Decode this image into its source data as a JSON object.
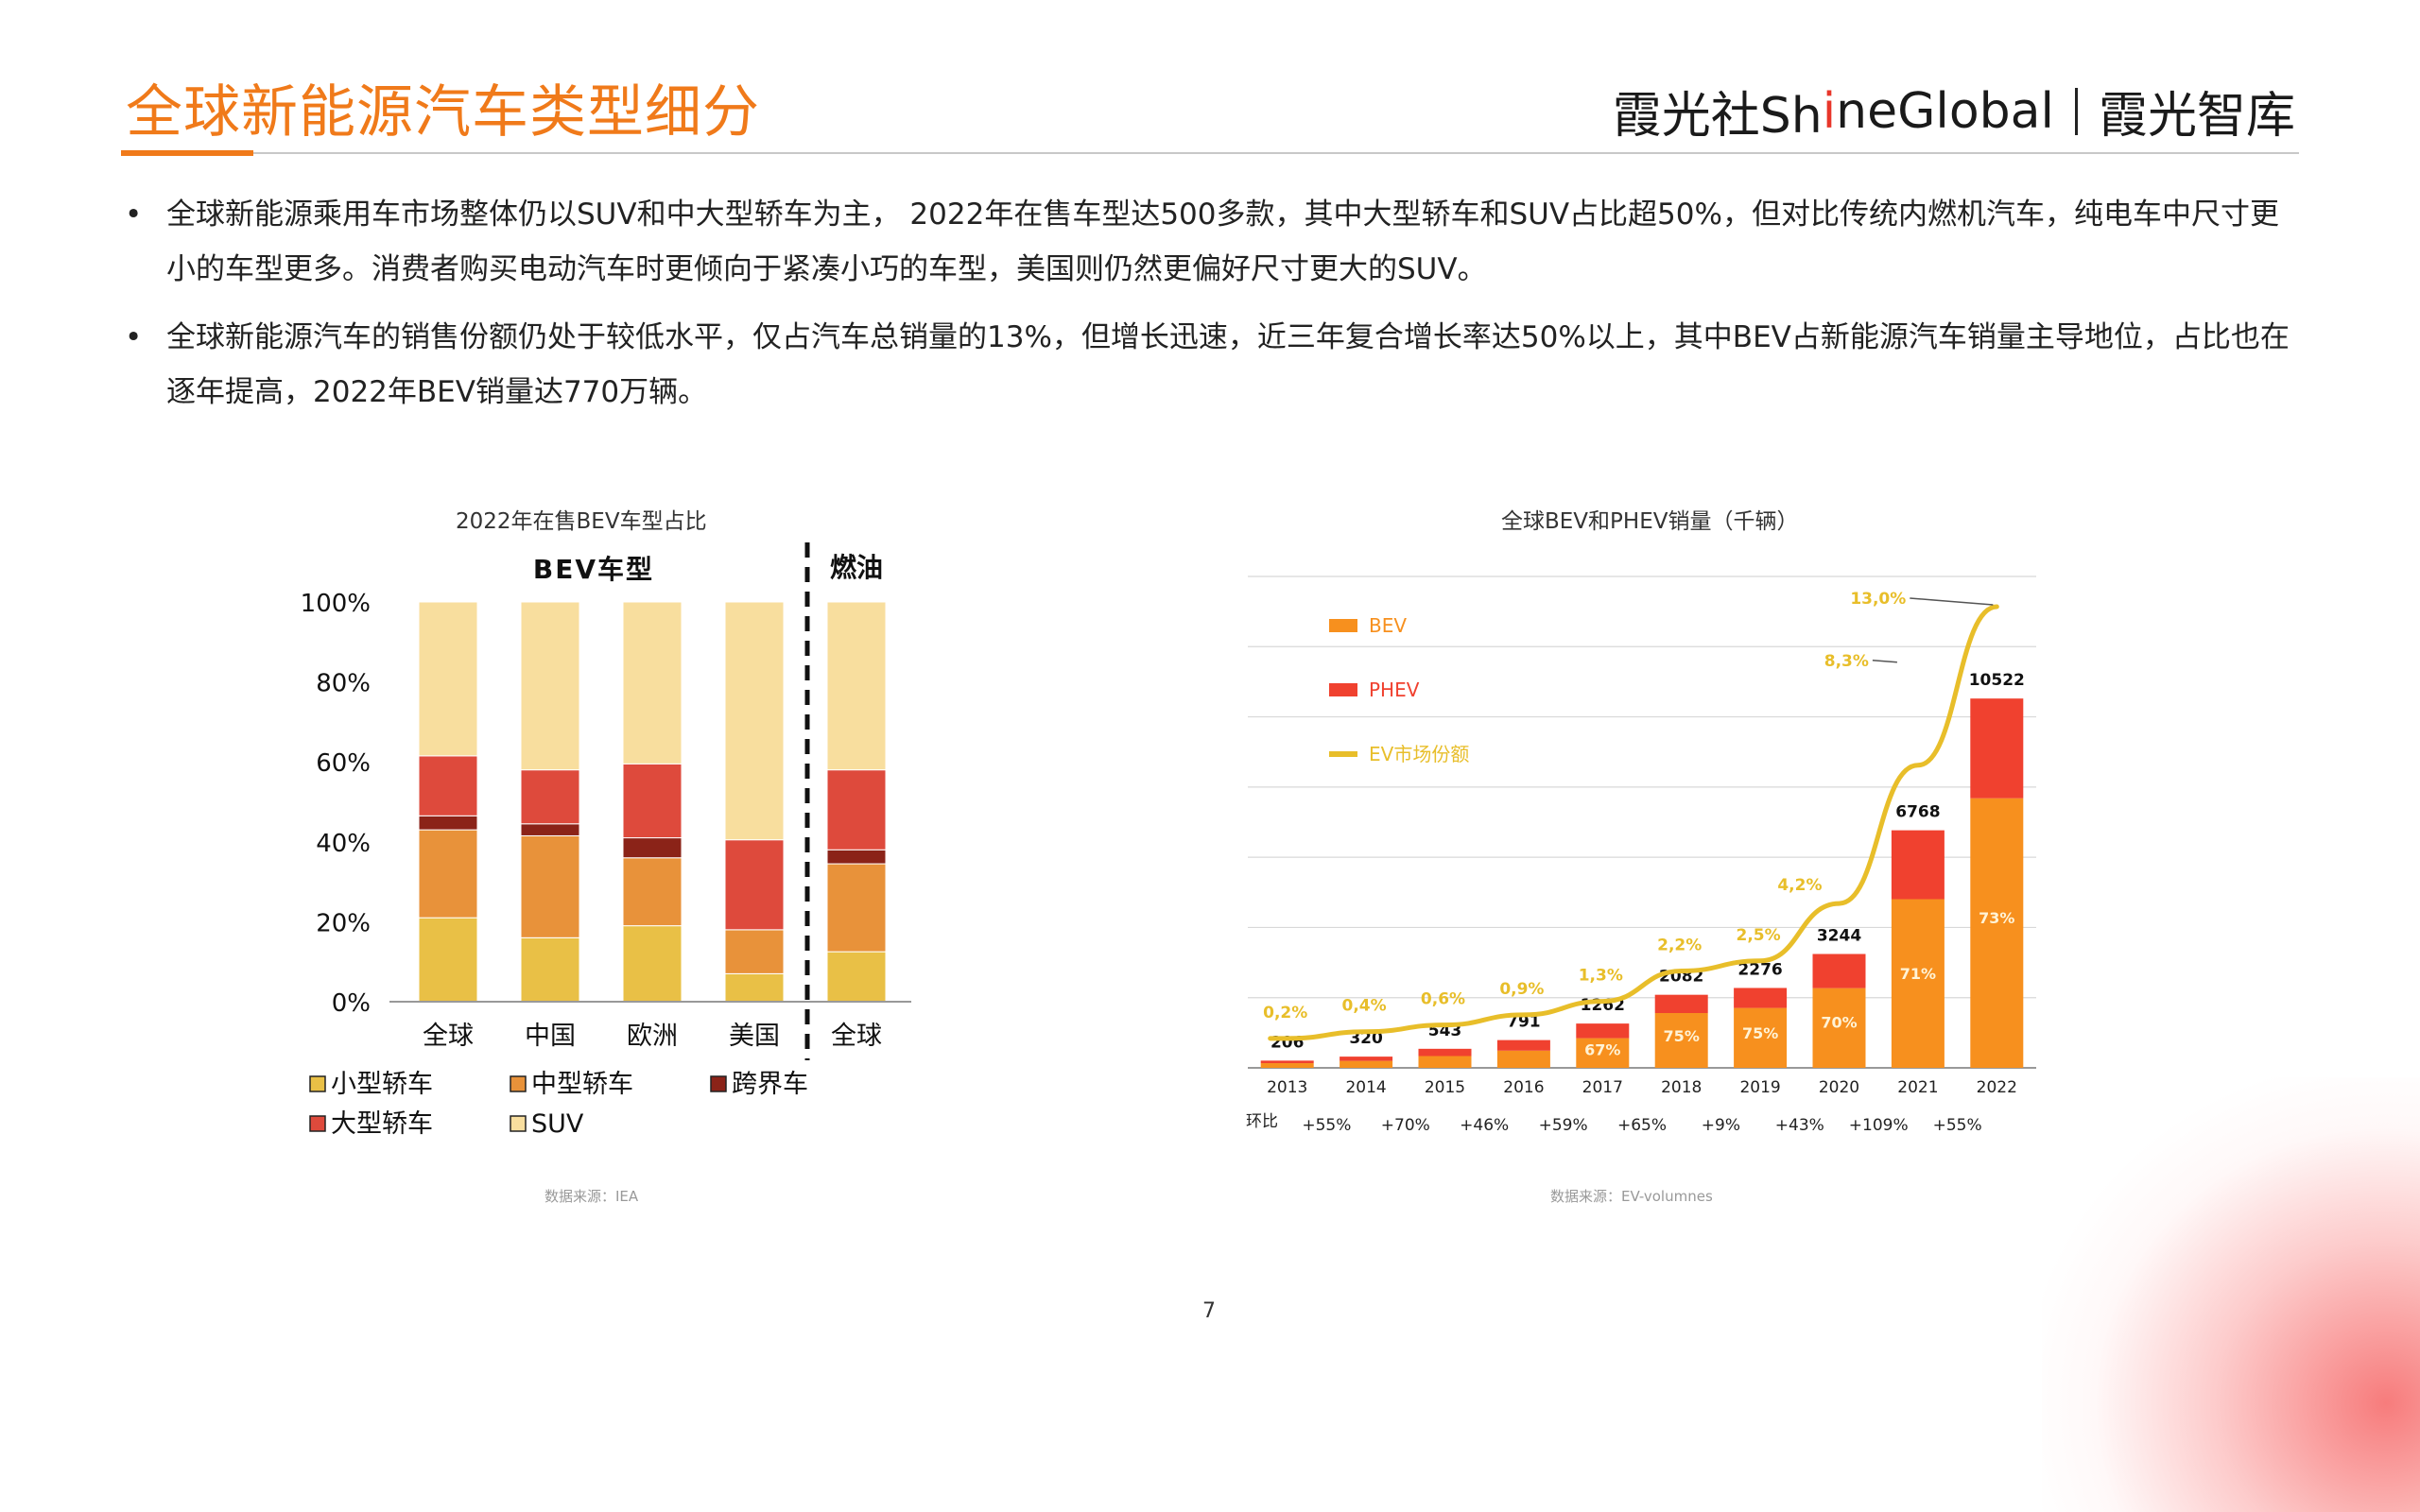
{
  "header": {
    "title": "全球新能源汽车类型细分",
    "brand_a1": "霞光社Sh",
    "brand_a2": "i",
    "brand_a3": "neGlobal",
    "brand_b": "霞光智库"
  },
  "bullets": [
    "全球新能源乘用车市场整体仍以SUV和中大型轿车为主， 2022年在售车型达500多款，其中大型轿车和SUV占比超50%，但对比传统内燃机汽车，纯电车中尺寸更小的车型更多。消费者购买电动汽车时更倾向于紧凑小巧的车型，美国则仍然更偏好尺寸更大的SUV。",
    "全球新能源汽车的销售份额仍处于较低水平，仅占汽车总销量的13%，但增长迅速，近三年复合增长率达50%以上，其中BEV占新能源汽车销量主导地位，占比也在逐年提高，2022年BEV销量达770万辆。"
  ],
  "page_number": "7",
  "chart_data": [
    {
      "type": "bar",
      "stacked": true,
      "title": "2022年在售BEV车型占比",
      "group_labels": [
        "BEV车型",
        "燃油"
      ],
      "categories": [
        "全球",
        "中国",
        "欧洲",
        "美国",
        "全球"
      ],
      "category_group": [
        0,
        0,
        0,
        0,
        1
      ],
      "yticks": [
        "0%",
        "20%",
        "40%",
        "60%",
        "80%",
        "100%"
      ],
      "ylim": [
        0,
        100
      ],
      "series": [
        {
          "name": "小型轿车",
          "color": "#E9C046",
          "values": [
            21,
            16,
            19,
            7,
            12.5
          ]
        },
        {
          "name": "中型轿车",
          "color": "#E8923A",
          "values": [
            22,
            25.5,
            17,
            11,
            22
          ]
        },
        {
          "name": "跨界车",
          "color": "#8B2318",
          "values": [
            3.5,
            3,
            5,
            0,
            3.5
          ]
        },
        {
          "name": "大型轿车",
          "color": "#DE4A3C",
          "values": [
            15,
            13.5,
            18.5,
            22.5,
            20
          ]
        },
        {
          "name": "SUV",
          "color": "#F8DE9E",
          "values": [
            38.5,
            42,
            40.5,
            59.5,
            42
          ]
        }
      ],
      "legend_position": "bottom",
      "source": "数据来源：IEA"
    },
    {
      "type": "bar",
      "stacked": true,
      "title": "全球BEV和PHEV销量（千辆）",
      "categories": [
        "2013",
        "2014",
        "2015",
        "2016",
        "2017",
        "2018",
        "2019",
        "2020",
        "2021",
        "2022"
      ],
      "totals": [
        206,
        320,
        543,
        791,
        1262,
        2082,
        2276,
        3244,
        6768,
        10522
      ],
      "total_labels": [
        "206",
        "320",
        "543",
        "791",
        "1262",
        "2082",
        "2276",
        "3244",
        "6768",
        "10522"
      ],
      "bev_share": [
        0.65,
        0.62,
        0.62,
        0.62,
        0.67,
        0.75,
        0.75,
        0.7,
        0.71,
        0.73
      ],
      "bev_share_labels": [
        "",
        "",
        "",
        "",
        "67%",
        "75%",
        "75%",
        "70%",
        "71%",
        "73%"
      ],
      "series": [
        {
          "name": "BEV",
          "color": "#F7901E"
        },
        {
          "name": "PHEV",
          "color": "#F0412F"
        },
        {
          "name": "EV市场份额",
          "color": "#E8BE2A",
          "type": "line",
          "values": [
            0.2,
            0.4,
            0.6,
            0.9,
            1.3,
            2.2,
            2.5,
            4.2,
            8.3,
            13.0
          ],
          "labels": [
            "0,2%",
            "0,4%",
            "0,6%",
            "0,9%",
            "1,3%",
            "2,2%",
            "2,5%",
            "4,2%",
            "8,3%",
            "13,0%"
          ]
        }
      ],
      "growth_label": "环比",
      "growth": [
        "+55%",
        "+70%",
        "+46%",
        "+59%",
        "+65%",
        "+9%",
        "+43%",
        "+109%",
        "+55%"
      ],
      "ylim": [
        0,
        14000
      ],
      "grid": true,
      "legend_position": "top-left",
      "source": "数据来源：EV-volumnes"
    }
  ]
}
